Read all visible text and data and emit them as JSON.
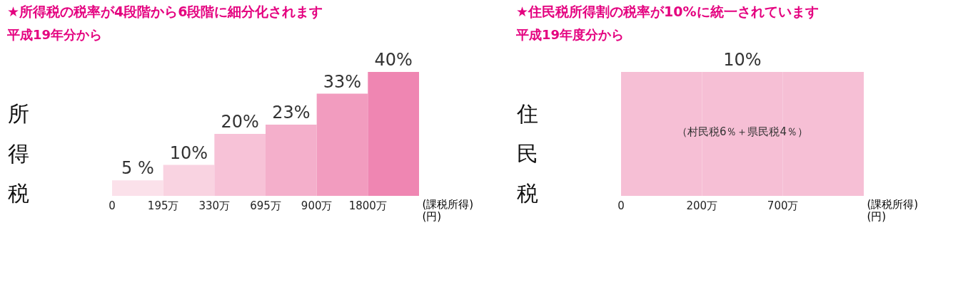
{
  "chart_data": [
    {
      "type": "bar",
      "title": "★所得税の税率が4段階から6段階に細分化されます",
      "subtitle": "平成19年分から",
      "ylabel": "所得税",
      "xlabel": "(課税所得)\n(円)",
      "categories": [
        "0",
        "195万",
        "330万",
        "695万",
        "900万",
        "1800万"
      ],
      "values": [
        5,
        10,
        20,
        23,
        33,
        40
      ],
      "value_labels": [
        "5 %",
        "10%",
        "20%",
        "23%",
        "33%",
        "40%"
      ],
      "colors": [
        "#fbe1ea",
        "#f9d3e1",
        "#f7c2d7",
        "#f4afcb",
        "#f29cbf",
        "#ef86b2"
      ]
    },
    {
      "type": "bar",
      "title": "★住民税所得割の税率が10%に統一されています",
      "subtitle": "平成19年度分から",
      "ylabel": "住民税",
      "xlabel": "(課税所得)\n(円)",
      "categories": [
        "0",
        "200万",
        "700万"
      ],
      "values": [
        10,
        10,
        10
      ],
      "value_labels": [
        null,
        "10%",
        null
      ],
      "colors": [
        "#f6bfd5",
        "#f6bfd5",
        "#f6bfd5"
      ],
      "annotations": [
        "（村民税6％＋県民税4％）"
      ]
    }
  ]
}
